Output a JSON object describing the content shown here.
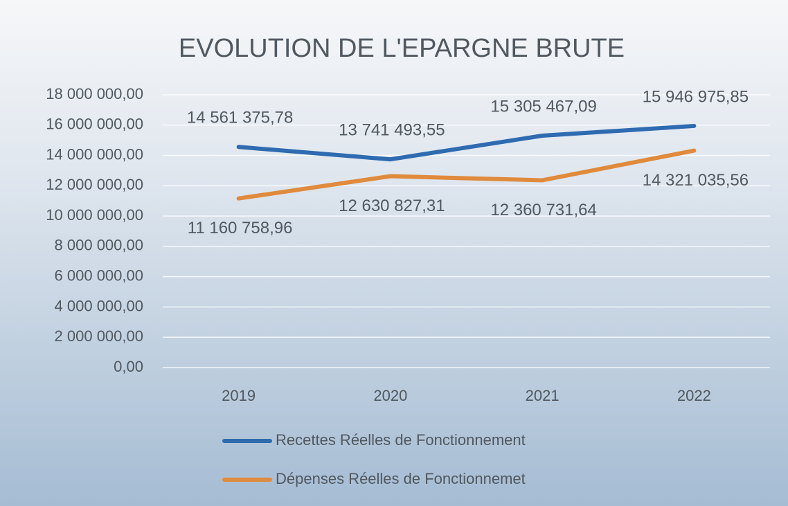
{
  "chart_data": {
    "type": "line",
    "title": "EVOLUTION DE L'EPARGNE BRUTE",
    "categories": [
      "2019",
      "2020",
      "2021",
      "2022"
    ],
    "series": [
      {
        "name": "Recettes Réelles de Fonctionnement",
        "color": "#2e6bb0",
        "values": [
          14561375.78,
          13741493.55,
          15305467.09,
          15946975.85
        ],
        "value_labels": [
          "14 561 375,78",
          "13 741 493,55",
          "15 305 467,09",
          "15 946 975,85"
        ]
      },
      {
        "name": "Dépenses Réelles de Fonctionnemet",
        "color": "#e08a3c",
        "values": [
          11160758.96,
          12630827.31,
          12360731.64,
          14321035.56
        ],
        "value_labels": [
          "11 160 758,96",
          "12 630 827,31",
          "12 360 731,64",
          "14 321 035,56"
        ]
      }
    ],
    "ylim": [
      0,
      18000000
    ],
    "yticks": [
      {
        "value": 0,
        "label": "0,00"
      },
      {
        "value": 2000000,
        "label": "2 000 000,00"
      },
      {
        "value": 4000000,
        "label": "4 000 000,00"
      },
      {
        "value": 6000000,
        "label": "6 000 000,00"
      },
      {
        "value": 8000000,
        "label": "8 000 000,00"
      },
      {
        "value": 10000000,
        "label": "10 000 000,00"
      },
      {
        "value": 12000000,
        "label": "12 000 000,00"
      },
      {
        "value": 14000000,
        "label": "14 000 000,00"
      },
      {
        "value": 16000000,
        "label": "16 000 000,00"
      },
      {
        "value": 18000000,
        "label": "18 000 000,00"
      }
    ],
    "grid": true,
    "legend": "bottom"
  }
}
